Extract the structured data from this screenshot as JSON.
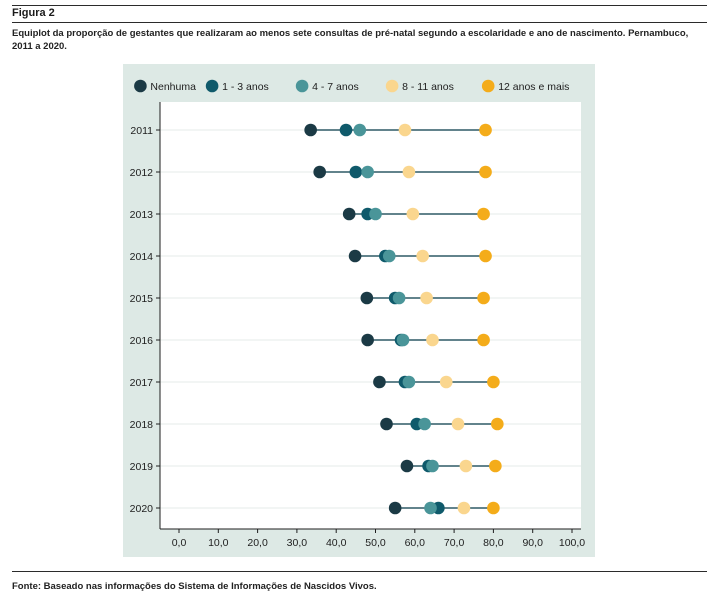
{
  "figure": {
    "label": "Figura 2",
    "caption": "Equiplot da proporção de gestantes que realizaram ao menos sete consultas de pré-natal segundo a escolaridade e ano de nascimento. Pernambuco, 2011 a 2020.",
    "source": "Fonte: Baseado nas informações do Sistema de Informações de Nascidos Vivos."
  },
  "chart_data": {
    "type": "scatter",
    "subtype": "equiplot",
    "orientation": "horizontal",
    "categories": [
      "2011",
      "2012",
      "2013",
      "2014",
      "2015",
      "2016",
      "2017",
      "2018",
      "2019",
      "2020"
    ],
    "series": [
      {
        "name": "Nenhuma",
        "color": "#1b3a45",
        "values": [
          33.5,
          35.8,
          43.3,
          44.8,
          47.8,
          48.0,
          51.0,
          52.8,
          58.0,
          55.0
        ]
      },
      {
        "name": "1 - 3 anos",
        "color": "#0f5a6b",
        "values": [
          42.5,
          45.0,
          48.0,
          52.5,
          55.0,
          56.5,
          57.5,
          60.5,
          63.5,
          66.0
        ]
      },
      {
        "name": "4 - 7 anos",
        "color": "#4a9599",
        "values": [
          46.0,
          48.0,
          50.0,
          53.5,
          56.0,
          57.0,
          58.5,
          62.5,
          64.5,
          64.0
        ]
      },
      {
        "name": "8 - 11 anos",
        "color": "#fad68e",
        "values": [
          57.5,
          58.5,
          59.5,
          62.0,
          63.0,
          64.5,
          68.0,
          71.0,
          73.0,
          72.5
        ]
      },
      {
        "name": "12 anos e mais",
        "color": "#f4ac1a",
        "values": [
          78.0,
          78.0,
          77.5,
          78.0,
          77.5,
          77.5,
          80.0,
          81.0,
          80.5,
          80.0
        ]
      }
    ],
    "xlim": [
      0,
      100
    ],
    "xticks": [
      "0,0",
      "10,0",
      "20,0",
      "30,0",
      "40,0",
      "50,0",
      "60,0",
      "70,0",
      "80,0",
      "90,0",
      "100,0"
    ],
    "xlabel": "",
    "ylabel": "",
    "legend_position": "top",
    "grid": "horizontal",
    "line_color": "#2e5a66"
  }
}
